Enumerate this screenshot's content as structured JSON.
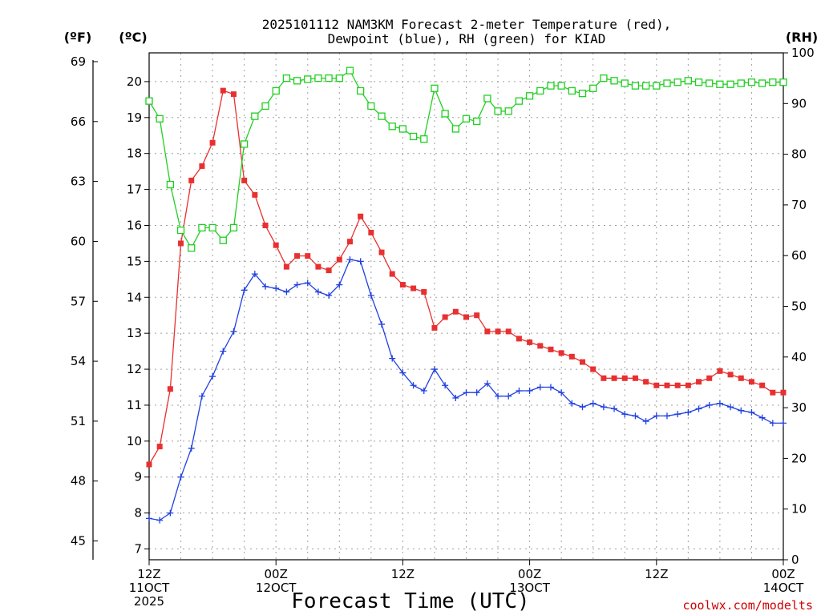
{
  "chart_data": {
    "type": "line",
    "title_lines": [
      "2025101112 NAM3KM Forecast 2-meter Temperature (red),",
      "Dewpoint (blue), RH (green) for KIAD"
    ],
    "xlabel": "Forecast Time (UTC)",
    "left_unit_outer": "(ºF)",
    "left_unit_inner": "(ºC)",
    "right_unit": "(RH)",
    "credit": "coolwx.com/modelts",
    "x_range_hours": [
      0,
      60
    ],
    "y_celsius_range": [
      6.7,
      20.8
    ],
    "y_rh_range": [
      0,
      100
    ],
    "grid": true,
    "x_ticks": [
      {
        "hour": 0,
        "line1": "12Z",
        "line2": "11OCT",
        "line3": "2025"
      },
      {
        "hour": 12,
        "line1": "00Z",
        "line2": "12OCT",
        "line3": ""
      },
      {
        "hour": 24,
        "line1": "12Z",
        "line2": "",
        "line3": ""
      },
      {
        "hour": 36,
        "line1": "00Z",
        "line2": "13OCT",
        "line3": ""
      },
      {
        "hour": 48,
        "line1": "12Z",
        "line2": "",
        "line3": ""
      },
      {
        "hour": 60,
        "line1": "00Z",
        "line2": "14OCT",
        "line3": ""
      }
    ],
    "celsius_ticks": [
      7,
      8,
      9,
      10,
      11,
      12,
      13,
      14,
      15,
      16,
      17,
      18,
      19,
      20
    ],
    "fahrenheit_ticks": [
      45,
      48,
      51,
      54,
      57,
      60,
      63,
      66,
      69
    ],
    "rh_ticks": [
      0,
      10,
      20,
      30,
      40,
      50,
      60,
      70,
      80,
      90,
      100
    ],
    "series": [
      {
        "axis": "celsius",
        "color": "#e83030",
        "marker": "filled-square",
        "points": [
          [
            0,
            9.35
          ],
          [
            1,
            9.85
          ],
          [
            2,
            11.45
          ],
          [
            3,
            15.5
          ],
          [
            4,
            17.25
          ],
          [
            5,
            17.65
          ],
          [
            6,
            18.3
          ],
          [
            7,
            19.75
          ],
          [
            8,
            19.65
          ],
          [
            9,
            17.25
          ],
          [
            10,
            16.85
          ],
          [
            11,
            16.0
          ],
          [
            12,
            15.45
          ],
          [
            13,
            14.85
          ],
          [
            14,
            15.15
          ],
          [
            15,
            15.15
          ],
          [
            16,
            14.85
          ],
          [
            17,
            14.75
          ],
          [
            18,
            15.05
          ],
          [
            19,
            15.55
          ],
          [
            20,
            16.25
          ],
          [
            21,
            15.8
          ],
          [
            22,
            15.25
          ],
          [
            23,
            14.65
          ],
          [
            24,
            14.35
          ],
          [
            25,
            14.25
          ],
          [
            26,
            14.15
          ],
          [
            27,
            13.15
          ],
          [
            28,
            13.45
          ],
          [
            29,
            13.6
          ],
          [
            30,
            13.45
          ],
          [
            31,
            13.5
          ],
          [
            32,
            13.05
          ],
          [
            33,
            13.05
          ],
          [
            34,
            13.05
          ],
          [
            35,
            12.85
          ],
          [
            36,
            12.75
          ],
          [
            37,
            12.65
          ],
          [
            38,
            12.55
          ],
          [
            39,
            12.45
          ],
          [
            40,
            12.35
          ],
          [
            41,
            12.2
          ],
          [
            42,
            12.0
          ],
          [
            43,
            11.75
          ],
          [
            44,
            11.75
          ],
          [
            45,
            11.75
          ],
          [
            46,
            11.75
          ],
          [
            47,
            11.65
          ],
          [
            48,
            11.55
          ],
          [
            49,
            11.55
          ],
          [
            50,
            11.55
          ],
          [
            51,
            11.55
          ],
          [
            52,
            11.65
          ],
          [
            53,
            11.75
          ],
          [
            54,
            11.95
          ],
          [
            55,
            11.85
          ],
          [
            56,
            11.75
          ],
          [
            57,
            11.65
          ],
          [
            58,
            11.55
          ],
          [
            59,
            11.35
          ],
          [
            60,
            11.35
          ]
        ]
      },
      {
        "axis": "celsius",
        "color": "#2040e0",
        "marker": "plus",
        "points": [
          [
            0,
            7.85
          ],
          [
            1,
            7.8
          ],
          [
            2,
            8.0
          ],
          [
            3,
            9.0
          ],
          [
            4,
            9.8
          ],
          [
            5,
            11.25
          ],
          [
            6,
            11.8
          ],
          [
            7,
            12.5
          ],
          [
            8,
            13.05
          ],
          [
            9,
            14.2
          ],
          [
            10,
            14.65
          ],
          [
            11,
            14.3
          ],
          [
            12,
            14.25
          ],
          [
            13,
            14.15
          ],
          [
            14,
            14.35
          ],
          [
            15,
            14.4
          ],
          [
            16,
            14.15
          ],
          [
            17,
            14.05
          ],
          [
            18,
            14.35
          ],
          [
            19,
            15.05
          ],
          [
            20,
            15.0
          ],
          [
            21,
            14.05
          ],
          [
            22,
            13.25
          ],
          [
            23,
            12.3
          ],
          [
            24,
            11.9
          ],
          [
            25,
            11.55
          ],
          [
            26,
            11.4
          ],
          [
            27,
            12.0
          ],
          [
            28,
            11.55
          ],
          [
            29,
            11.2
          ],
          [
            30,
            11.35
          ],
          [
            31,
            11.35
          ],
          [
            32,
            11.6
          ],
          [
            33,
            11.25
          ],
          [
            34,
            11.25
          ],
          [
            35,
            11.4
          ],
          [
            36,
            11.4
          ],
          [
            37,
            11.5
          ],
          [
            38,
            11.5
          ],
          [
            39,
            11.35
          ],
          [
            40,
            11.05
          ],
          [
            41,
            10.95
          ],
          [
            42,
            11.05
          ],
          [
            43,
            10.95
          ],
          [
            44,
            10.9
          ],
          [
            45,
            10.75
          ],
          [
            46,
            10.7
          ],
          [
            47,
            10.55
          ],
          [
            48,
            10.7
          ],
          [
            49,
            10.7
          ],
          [
            50,
            10.75
          ],
          [
            51,
            10.8
          ],
          [
            52,
            10.9
          ],
          [
            53,
            11.0
          ],
          [
            54,
            11.05
          ],
          [
            55,
            10.95
          ],
          [
            56,
            10.85
          ],
          [
            57,
            10.8
          ],
          [
            58,
            10.65
          ],
          [
            59,
            10.5
          ],
          [
            60,
            10.5
          ]
        ]
      },
      {
        "axis": "rh",
        "color": "#20d020",
        "marker": "open-square",
        "points": [
          [
            0,
            90.5
          ],
          [
            1,
            87.0
          ],
          [
            2,
            74.0
          ],
          [
            3,
            65.0
          ],
          [
            4,
            61.5
          ],
          [
            5,
            65.5
          ],
          [
            6,
            65.5
          ],
          [
            7,
            63.0
          ],
          [
            8,
            65.5
          ],
          [
            9,
            82.0
          ],
          [
            10,
            87.5
          ],
          [
            11,
            89.5
          ],
          [
            12,
            92.5
          ],
          [
            13,
            95.0
          ],
          [
            14,
            94.5
          ],
          [
            15,
            94.8
          ],
          [
            16,
            95.0
          ],
          [
            17,
            95.0
          ],
          [
            18,
            95.0
          ],
          [
            19,
            96.5
          ],
          [
            20,
            92.5
          ],
          [
            21,
            89.5
          ],
          [
            22,
            87.5
          ],
          [
            23,
            85.5
          ],
          [
            24,
            85.0
          ],
          [
            25,
            83.5
          ],
          [
            26,
            83.0
          ],
          [
            27,
            93.0
          ],
          [
            28,
            88.0
          ],
          [
            29,
            85.0
          ],
          [
            30,
            87.0
          ],
          [
            31,
            86.5
          ],
          [
            32,
            91.0
          ],
          [
            33,
            88.5
          ],
          [
            34,
            88.5
          ],
          [
            35,
            90.5
          ],
          [
            36,
            91.5
          ],
          [
            37,
            92.5
          ],
          [
            38,
            93.5
          ],
          [
            39,
            93.5
          ],
          [
            40,
            92.5
          ],
          [
            41,
            92.0
          ],
          [
            42,
            93.0
          ],
          [
            43,
            95.0
          ],
          [
            44,
            94.5
          ],
          [
            45,
            94.0
          ],
          [
            46,
            93.5
          ],
          [
            47,
            93.5
          ],
          [
            48,
            93.5
          ],
          [
            49,
            94.0
          ],
          [
            50,
            94.2
          ],
          [
            51,
            94.5
          ],
          [
            52,
            94.2
          ],
          [
            53,
            94.0
          ],
          [
            54,
            93.8
          ],
          [
            55,
            93.8
          ],
          [
            56,
            94.0
          ],
          [
            57,
            94.2
          ],
          [
            58,
            94.0
          ],
          [
            59,
            94.2
          ],
          [
            60,
            94.2
          ]
        ]
      }
    ]
  }
}
